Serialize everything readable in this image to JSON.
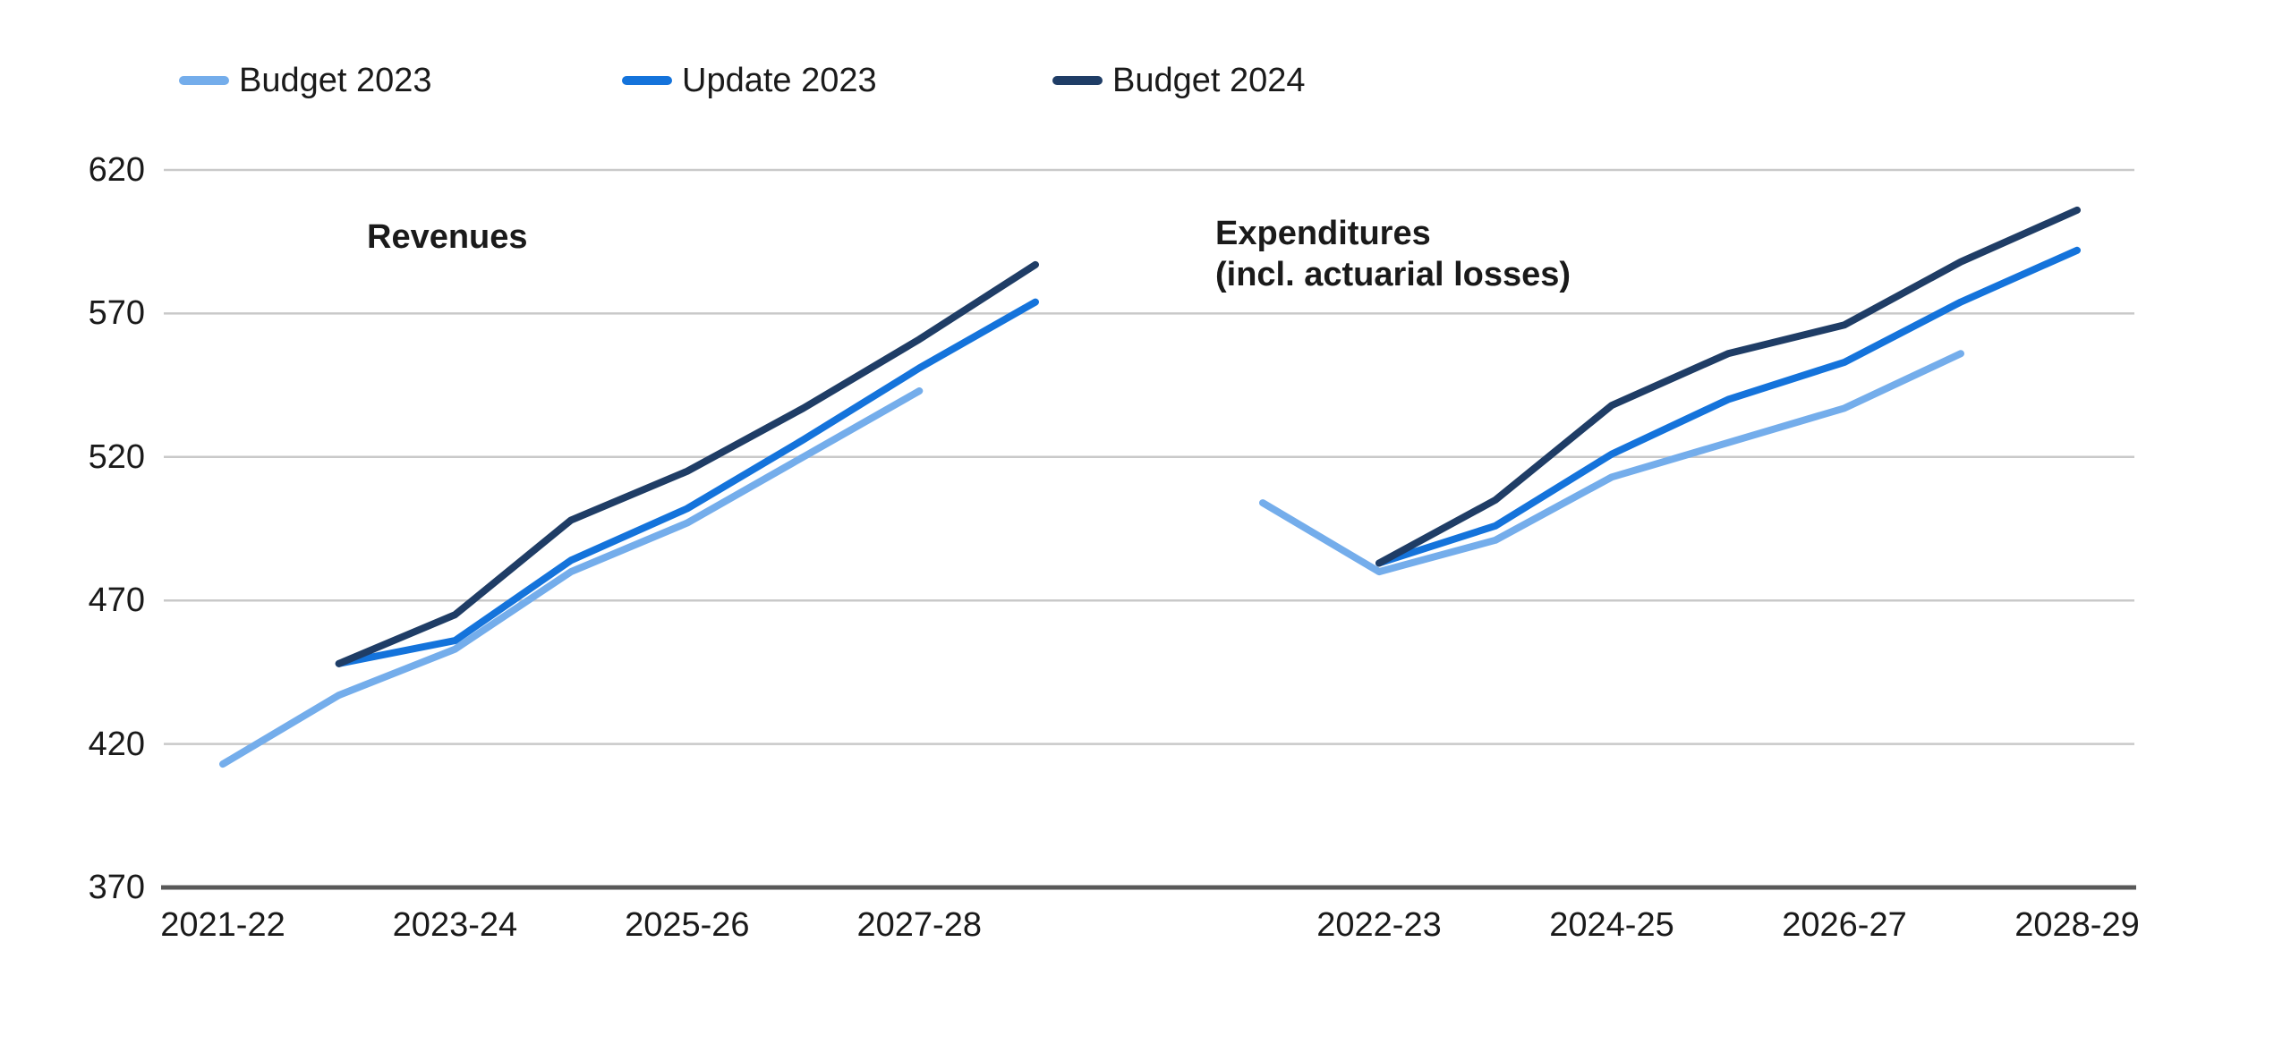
{
  "legend": {
    "items": [
      {
        "label": "Budget 2023",
        "color": "#74ADEB"
      },
      {
        "label": "Update 2023",
        "color": "#1473DB"
      },
      {
        "label": "Budget 2024",
        "color": "#1F3D66"
      }
    ]
  },
  "chart_data": {
    "type": "line",
    "years": [
      "2021-22",
      "2022-23",
      "2023-24",
      "2024-25",
      "2025-26",
      "2026-27",
      "2027-28",
      "2028-29"
    ],
    "y_axis": {
      "min": 370,
      "max": 620,
      "ticks": [
        620,
        570,
        520,
        470,
        420,
        370
      ]
    },
    "grid": true,
    "legend_position": "top",
    "colors": {
      "gridline": "#C9C9C9",
      "axis": "#595959",
      "text": "#1A1A1A"
    },
    "panels": [
      {
        "id": "revenues",
        "title_lines": [
          "Revenues"
        ],
        "x_tick_indices": [
          0,
          2,
          4,
          6
        ],
        "series": [
          {
            "name": "Budget 2023",
            "color": "#74ADEB",
            "start_index": 0,
            "values": [
              413,
              437,
              453,
              480,
              497,
              520,
              543
            ]
          },
          {
            "name": "Update 2023",
            "color": "#1473DB",
            "start_index": 1,
            "values": [
              448,
              456,
              484,
              502,
              526,
              551,
              574
            ]
          },
          {
            "name": "Budget 2024",
            "color": "#1F3D66",
            "start_index": 1,
            "values": [
              448,
              465,
              498,
              515,
              537,
              561,
              587
            ]
          }
        ]
      },
      {
        "id": "expenditures",
        "title_lines": [
          "Expenditures",
          "(incl. actuarial losses)"
        ],
        "x_tick_indices": [
          1,
          3,
          5,
          7
        ],
        "series": [
          {
            "name": "Budget 2023",
            "color": "#74ADEB",
            "start_index": 0,
            "values": [
              504,
              480,
              491,
              513,
              525,
              537,
              556
            ]
          },
          {
            "name": "Update 2023",
            "color": "#1473DB",
            "start_index": 1,
            "values": [
              483,
              496,
              521,
              540,
              553,
              574,
              592
            ]
          },
          {
            "name": "Budget 2024",
            "color": "#1F3D66",
            "start_index": 1,
            "values": [
              483,
              505,
              538,
              556,
              566,
              588,
              606
            ]
          }
        ]
      }
    ]
  }
}
